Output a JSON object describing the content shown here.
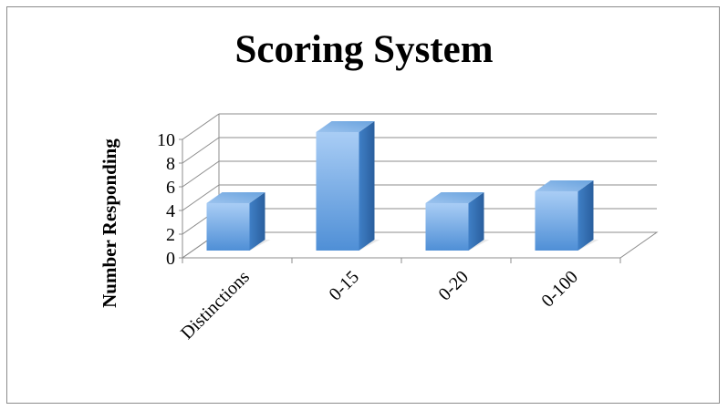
{
  "chart_data": {
    "type": "bar",
    "title": "Scoring System",
    "ylabel": "Number Responding",
    "xlabel": "",
    "categories": [
      "Distinctions",
      "0-15",
      "0-20",
      "0-100"
    ],
    "values": [
      4,
      10,
      4,
      5
    ],
    "ylim": [
      0,
      10
    ],
    "yticks": [
      0,
      2,
      4,
      6,
      8,
      10
    ],
    "grid": true,
    "style": "3d-column",
    "colors": {
      "bar_light": "#a9cdf5",
      "bar_mid": "#5b9bd5",
      "bar_dark": "#2f6fb3",
      "grid": "#8c8c8c"
    }
  }
}
